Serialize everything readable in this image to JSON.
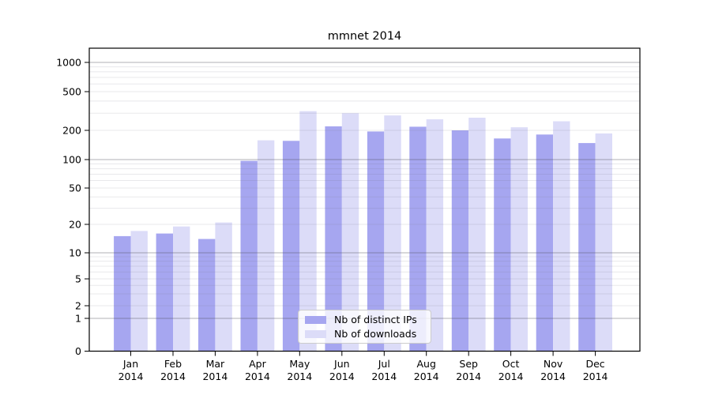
{
  "chart_data": {
    "type": "bar",
    "title": "mmnet 2014",
    "categories": [
      "Jan",
      "Feb",
      "Mar",
      "Apr",
      "May",
      "Jun",
      "Jul",
      "Aug",
      "Sep",
      "Oct",
      "Nov",
      "Dec"
    ],
    "category_year": "2014",
    "series": [
      {
        "name": "Nb of distinct IPs",
        "color": "#a6a6f0",
        "values": [
          15,
          16,
          14,
          97,
          156,
          220,
          195,
          218,
          200,
          165,
          181,
          148
        ]
      },
      {
        "name": "Nb of downloads",
        "color": "#dcdcf8",
        "values": [
          17,
          19,
          21,
          158,
          315,
          300,
          285,
          260,
          270,
          215,
          248,
          186
        ]
      }
    ],
    "xlabel": "",
    "ylabel": "",
    "y_axis": {
      "scale": "symlog",
      "tick_labels": [
        0,
        1,
        2,
        5,
        10,
        20,
        50,
        100,
        200,
        500,
        1000
      ],
      "major_gridlines": [
        1,
        10,
        100,
        1000
      ],
      "ylim": [
        0,
        1400
      ],
      "grid": true
    },
    "legend": {
      "position": "inside-bottom-center",
      "entries": [
        "Nb of distinct IPs",
        "Nb of downloads"
      ]
    }
  }
}
